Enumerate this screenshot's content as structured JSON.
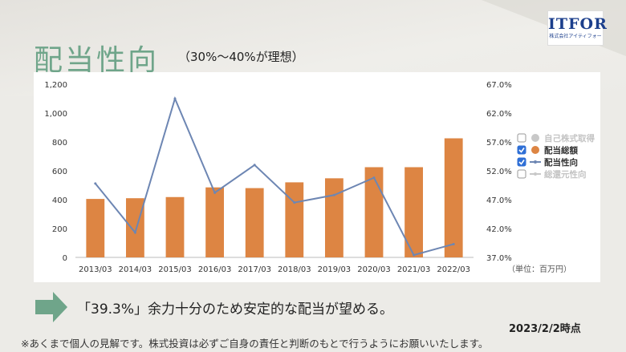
{
  "slide": {
    "title": "配当性向",
    "subtitle": "（30%〜40%が理想）",
    "logo_mark": "ITFOR",
    "logo_sub": "株式会社アイティフォー",
    "message": "「39.3%」余力十分のため安定的な配当が望める。",
    "as_of": "2023/2/2時点",
    "disclaimer": "※あくまで個人の見解です。株式投資は必ずご自身の責任と判断のもとで行うようにお願いいたします。"
  },
  "colors": {
    "bar": "#dd8543",
    "line": "#6d86b3",
    "title": "#6fa58a",
    "arrow": "#6fa58a"
  },
  "chart_data": {
    "type": "bar",
    "categories": [
      "2013/03",
      "2014/03",
      "2015/03",
      "2016/03",
      "2017/03",
      "2018/03",
      "2019/03",
      "2020/03",
      "2021/03",
      "2022/03"
    ],
    "series": [
      {
        "name": "配当総額",
        "type": "bar",
        "axis": "left",
        "values": [
          405,
          410,
          418,
          485,
          480,
          520,
          548,
          625,
          625,
          825
        ]
      },
      {
        "name": "配当性向",
        "type": "line",
        "axis": "right",
        "values": [
          49.8,
          41.3,
          64.5,
          48.2,
          53.0,
          46.5,
          47.8,
          50.8,
          37.4,
          39.3
        ]
      }
    ],
    "left_axis": {
      "ticks": [
        "0",
        "200",
        "400",
        "600",
        "800",
        "1,000",
        "1,200"
      ],
      "ylim": [
        0,
        1200
      ]
    },
    "right_axis": {
      "ticks": [
        "37.0%",
        "42.0%",
        "47.0%",
        "52.0%",
        "57.0%",
        "62.0%",
        "67.0%"
      ],
      "ylim": [
        37,
        67
      ]
    },
    "unit_label": "（単位：百万円）",
    "legend": [
      {
        "label": "自己株式取得",
        "checked": false,
        "marker": "dot",
        "color": "#c8c8c8",
        "muted": true
      },
      {
        "label": "配当総額",
        "checked": true,
        "marker": "dot",
        "color": "#dd8543",
        "muted": false
      },
      {
        "label": "配当性向",
        "checked": true,
        "marker": "line",
        "color": "#6d86b3",
        "muted": false
      },
      {
        "label": "総還元性向",
        "checked": false,
        "marker": "line",
        "color": "#c8c8c8",
        "muted": true
      }
    ],
    "legend_position": "right",
    "grid": false
  }
}
